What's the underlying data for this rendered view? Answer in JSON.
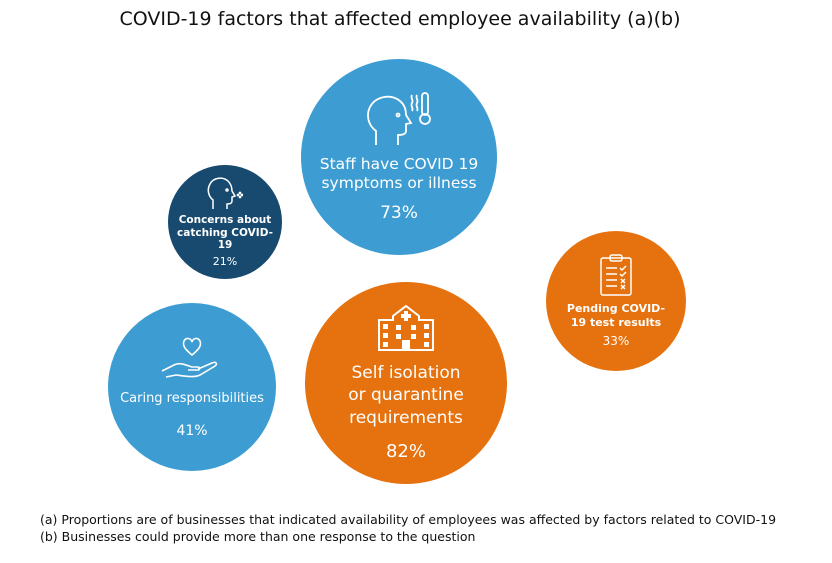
{
  "title": "COVID-19 factors that affected employee availability (a)(b)",
  "colors": {
    "light_blue": "#3d9dd3",
    "dark_blue": "#174a6e",
    "orange": "#e5720f"
  },
  "bubbles": [
    {
      "label": "Staff have COVID 19 symptoms or illness",
      "value": "73%",
      "icon": "head-thermometer-icon",
      "color": "light_blue"
    },
    {
      "label": "Concerns about catching COVID-19",
      "value": "21%",
      "icon": "head-cough-icon",
      "color": "dark_blue"
    },
    {
      "label": "Caring responsibilities",
      "value": "41%",
      "icon": "hand-heart-icon",
      "color": "light_blue"
    },
    {
      "label": "Self isolation or quarantine requirements",
      "value": "82%",
      "icon": "hospital-icon",
      "color": "orange"
    },
    {
      "label": "Pending COVID-19 test results",
      "value": "33%",
      "icon": "clipboard-checklist-icon",
      "color": "orange"
    }
  ],
  "notes": [
    "(a) Proportions are of businesses that indicated availability of employees was affected by factors related to COVID-19",
    "(b) Businesses could provide more than one response to the question"
  ]
}
